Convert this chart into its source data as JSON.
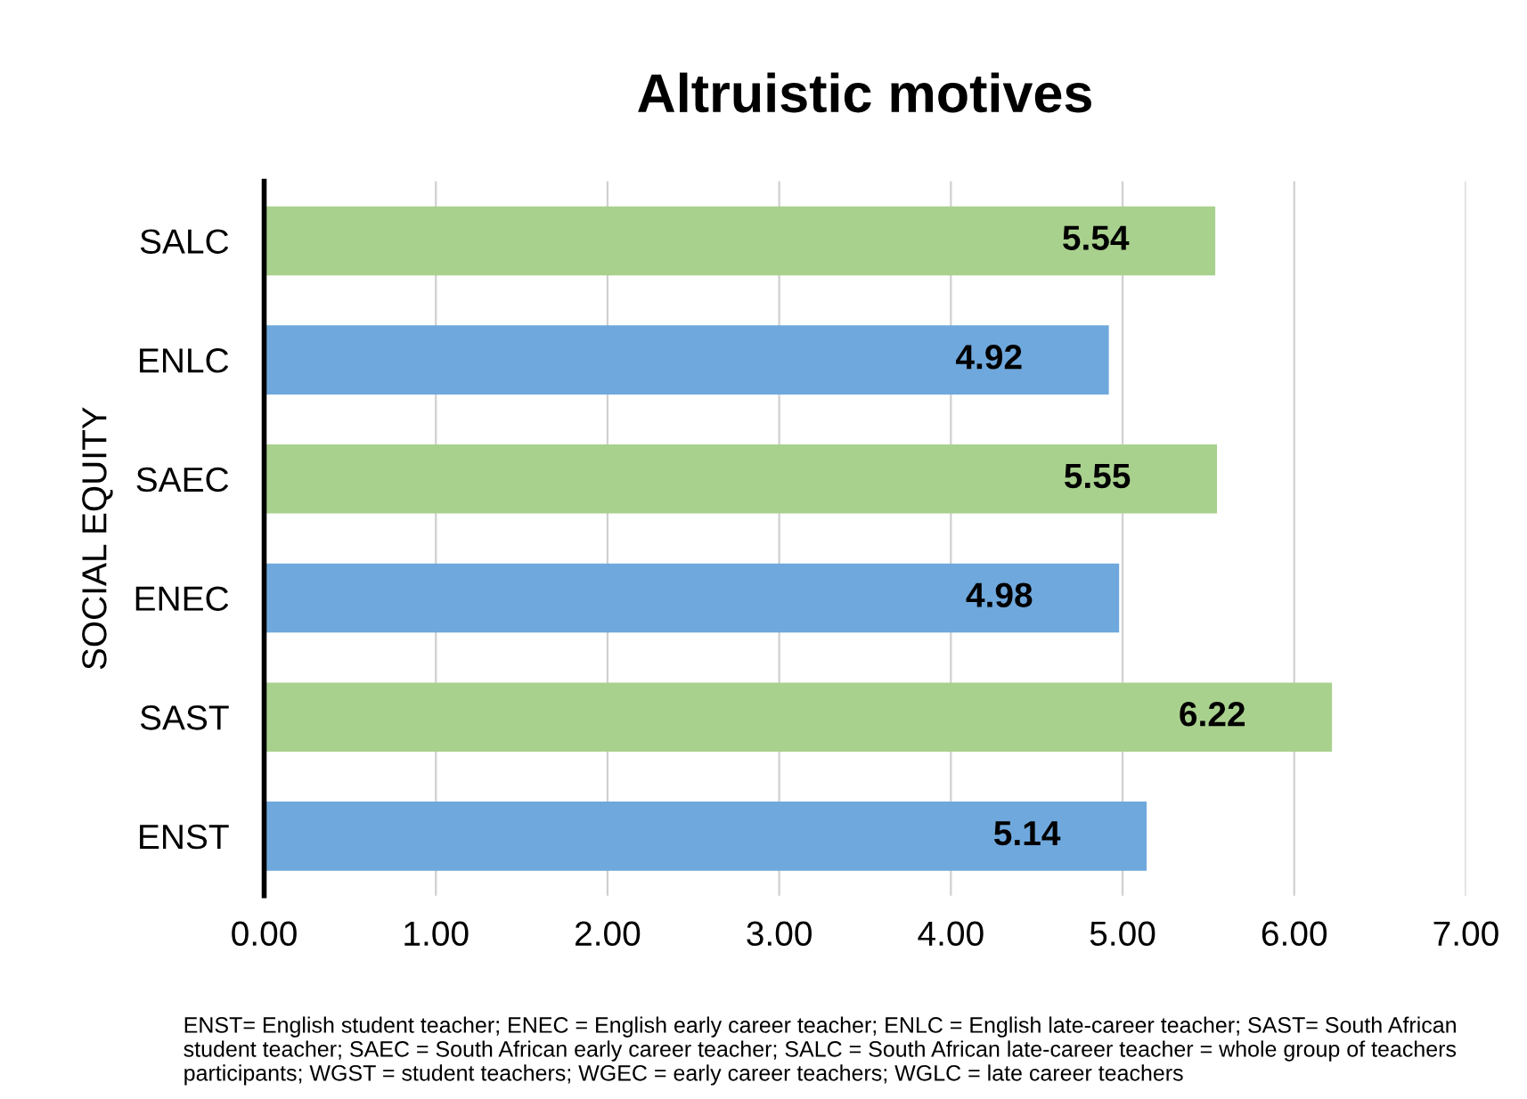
{
  "chart_data": {
    "type": "bar",
    "orientation": "horizontal",
    "title": "Altruistic motives",
    "ylabel": "SOCIAL EQUITY",
    "categories": [
      "SALC",
      "ENLC",
      "SAEC",
      "ENEC",
      "SAST",
      "ENST"
    ],
    "values": [
      5.54,
      4.92,
      5.55,
      4.98,
      6.22,
      5.14
    ],
    "colors": [
      "#a9d18e",
      "#6fa8dc",
      "#a9d18e",
      "#6fa8dc",
      "#a9d18e",
      "#6fa8dc"
    ],
    "data_labels": true,
    "xlim": [
      0,
      7
    ],
    "xticks": [
      {
        "value": 0,
        "label": "0.00"
      },
      {
        "value": 1,
        "label": "1.00"
      },
      {
        "value": 2,
        "label": "2.00"
      },
      {
        "value": 3,
        "label": "3.00"
      },
      {
        "value": 4,
        "label": "4.00"
      },
      {
        "value": 5,
        "label": "5.00"
      },
      {
        "value": 6,
        "label": "6.00"
      },
      {
        "value": 7,
        "label": "7.00"
      }
    ],
    "grid": "x",
    "annotations": [
      "ENST= English student teacher; ENEC = English early career teacher; ENLC = English late-career teacher; SAST= South African student teacher; SAEC = South African early career teacher; SALC = South African late-career teacher = whole group of teachers participants; WGST = student teachers; WGEC = early career teachers; WGLC = late career teachers"
    ]
  }
}
